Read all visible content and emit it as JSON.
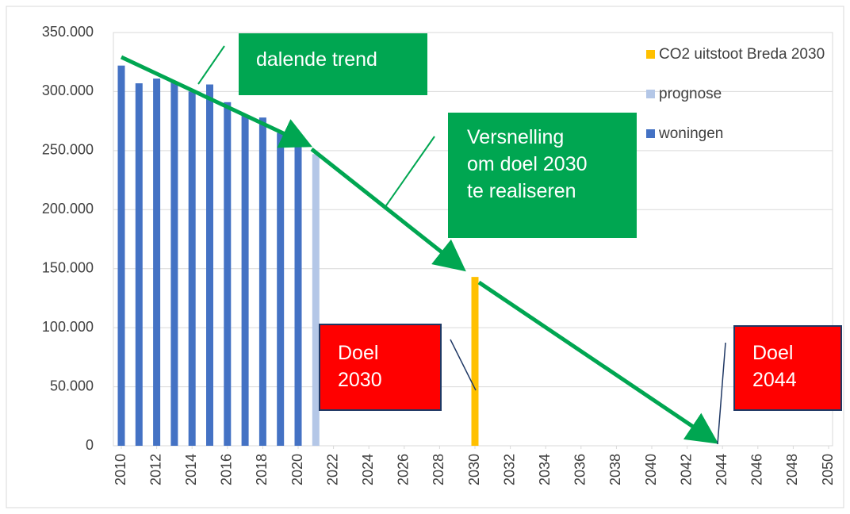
{
  "chart_data": {
    "type": "bar",
    "ylim": [
      0,
      350000
    ],
    "yticks": [
      0,
      {
        "value": 50000,
        "label": "50.000"
      },
      {
        "value": 100000,
        "label": "100.000"
      },
      {
        "value": 150000,
        "label": "150.000"
      },
      {
        "value": 200000,
        "label": "200.000"
      },
      {
        "value": 250000,
        "label": "250.000"
      },
      {
        "value": 300000,
        "label": "300.000"
      },
      {
        "value": 350000,
        "label": "350.000"
      }
    ],
    "xlim": [
      2010,
      2050
    ],
    "xticks": [
      2010,
      2012,
      2014,
      2016,
      2018,
      2020,
      2022,
      2024,
      2026,
      2028,
      2030,
      2032,
      2034,
      2036,
      2038,
      2040,
      2042,
      2044,
      2046,
      2048,
      2050
    ],
    "grid": true,
    "legend": "right",
    "series": [
      {
        "name": "CO2 uitstoot Breda 2030",
        "color": "#ffc000",
        "x": [
          2030
        ],
        "values": [
          143000
        ]
      },
      {
        "name": "prognose",
        "color": "#b4c7e7",
        "x": [
          2021
        ],
        "values": [
          247000
        ]
      },
      {
        "name": "woningen",
        "color": "#4472c4",
        "x": [
          2010,
          2011,
          2012,
          2013,
          2014,
          2015,
          2016,
          2017,
          2018,
          2019,
          2020
        ],
        "values": [
          322000,
          307000,
          311000,
          308000,
          300000,
          306000,
          291000,
          280000,
          278000,
          265000,
          253000
        ]
      }
    ],
    "annotations": [
      {
        "lines": [
          "dalende trend"
        ]
      },
      {
        "lines": [
          "Versnelling",
          "om doel 2030",
          "te realiseren"
        ]
      },
      {
        "lines": [
          "Doel",
          "2030"
        ]
      },
      {
        "lines": [
          "Doel",
          "2044"
        ]
      }
    ]
  }
}
